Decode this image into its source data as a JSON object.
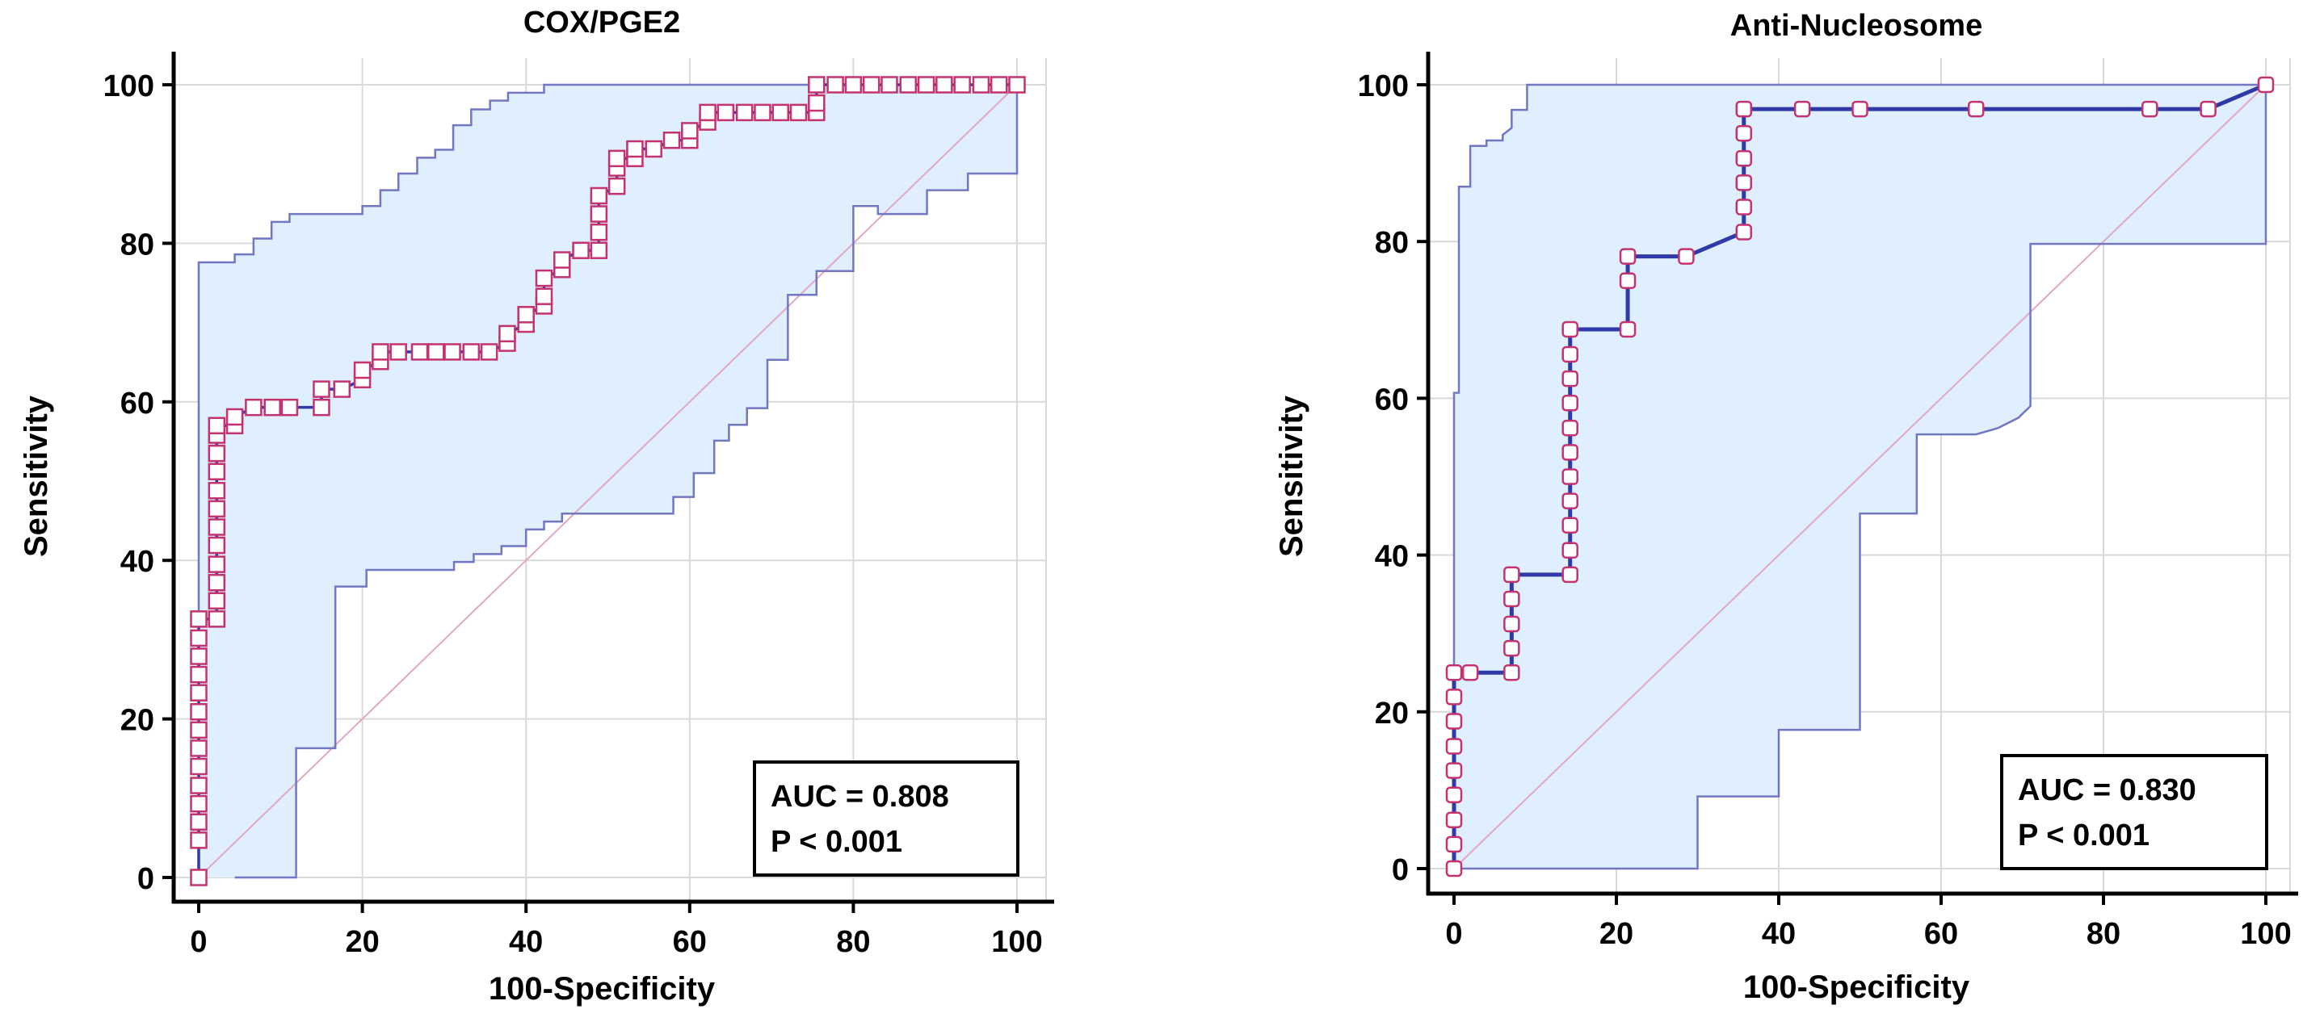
{
  "colors": {
    "ci_fill": "#dfeffd",
    "ci_line": "#7377c2",
    "curve": "#2f3aa8",
    "marker": "#c4326f",
    "diagonal": "#e2a7c4",
    "grid": "#d9d9d9",
    "axis": "#000000"
  },
  "chart_data": [
    {
      "type": "line",
      "title": "COX/PGE2",
      "xlabel": "100-Specificity",
      "ylabel": "Sensitivity",
      "xlim": [
        0,
        100
      ],
      "ylim": [
        0,
        100
      ],
      "xticks": [
        "0",
        "20",
        "40",
        "60",
        "80",
        "100"
      ],
      "yticks": [
        "0",
        "20",
        "40",
        "60",
        "80",
        "100"
      ],
      "grid": true,
      "marker": "square",
      "annotation": {
        "auc": "AUC = 0.808",
        "p": "P < 0.001",
        "position": "bottom-right"
      },
      "series": [
        {
          "name": "ROC",
          "points": [
            [
              0,
              0
            ],
            [
              0,
              4.7
            ],
            [
              0,
              7
            ],
            [
              0,
              9.3
            ],
            [
              0,
              11.6
            ],
            [
              0,
              14
            ],
            [
              0,
              16.3
            ],
            [
              0,
              18.6
            ],
            [
              0,
              20.9
            ],
            [
              0,
              23.3
            ],
            [
              0,
              25.6
            ],
            [
              0,
              27.9
            ],
            [
              0,
              30.2
            ],
            [
              0,
              32.6
            ],
            [
              2.2,
              32.6
            ],
            [
              2.2,
              34.9
            ],
            [
              2.2,
              37.2
            ],
            [
              2.2,
              39.5
            ],
            [
              2.2,
              41.9
            ],
            [
              2.2,
              44.2
            ],
            [
              2.2,
              46.5
            ],
            [
              2.2,
              48.8
            ],
            [
              2.2,
              51.2
            ],
            [
              2.2,
              53.5
            ],
            [
              2.2,
              55.8
            ],
            [
              2.2,
              57
            ],
            [
              4.4,
              57
            ],
            [
              4.4,
              58.1
            ],
            [
              6.7,
              59.3
            ],
            [
              9,
              59.3
            ],
            [
              11.1,
              59.3
            ],
            [
              15,
              59.3
            ],
            [
              15,
              61.6
            ],
            [
              17.5,
              61.6
            ],
            [
              20,
              62.8
            ],
            [
              20,
              64
            ],
            [
              22.2,
              65.1
            ],
            [
              22.2,
              66.3
            ],
            [
              24.4,
              66.3
            ],
            [
              27,
              66.3
            ],
            [
              29,
              66.3
            ],
            [
              31,
              66.3
            ],
            [
              33.3,
              66.3
            ],
            [
              35.5,
              66.3
            ],
            [
              37.7,
              67.4
            ],
            [
              37.7,
              68.6
            ],
            [
              40,
              69.8
            ],
            [
              40,
              71
            ],
            [
              42.2,
              72.1
            ],
            [
              42.2,
              73.3
            ],
            [
              42.2,
              75.6
            ],
            [
              44.4,
              76.7
            ],
            [
              44.4,
              77.9
            ],
            [
              46.7,
              79.1
            ],
            [
              48.9,
              79.1
            ],
            [
              48.9,
              81.4
            ],
            [
              48.9,
              83.7
            ],
            [
              48.9,
              86
            ],
            [
              51.1,
              87.2
            ],
            [
              51.1,
              89.5
            ],
            [
              51.1,
              90.7
            ],
            [
              53.3,
              90.7
            ],
            [
              53.3,
              91.9
            ],
            [
              55.6,
              91.9
            ],
            [
              57.8,
              93
            ],
            [
              60,
              93
            ],
            [
              60,
              94.2
            ],
            [
              62.2,
              95.3
            ],
            [
              62.2,
              96.5
            ],
            [
              64.4,
              96.5
            ],
            [
              66.7,
              96.5
            ],
            [
              68.9,
              96.5
            ],
            [
              71.1,
              96.5
            ],
            [
              73.3,
              96.5
            ],
            [
              75.5,
              96.5
            ],
            [
              75.5,
              97.7
            ],
            [
              75.5,
              100
            ],
            [
              77.8,
              100
            ],
            [
              80,
              100
            ],
            [
              82.2,
              100
            ],
            [
              84.4,
              100
            ],
            [
              86.7,
              100
            ],
            [
              88.9,
              100
            ],
            [
              91.1,
              100
            ],
            [
              93.3,
              100
            ],
            [
              95.6,
              100
            ],
            [
              97.8,
              100
            ],
            [
              100,
              100
            ]
          ]
        },
        {
          "name": "CI upper",
          "points": [
            [
              0,
              0
            ],
            [
              0,
              77.6
            ],
            [
              4.4,
              77.6
            ],
            [
              4.4,
              78.6
            ],
            [
              6.7,
              78.6
            ],
            [
              6.7,
              80.6
            ],
            [
              8.9,
              80.6
            ],
            [
              8.9,
              82.7
            ],
            [
              11.1,
              82.7
            ],
            [
              11.1,
              83.7
            ],
            [
              20,
              83.7
            ],
            [
              20,
              84.7
            ],
            [
              22.2,
              84.7
            ],
            [
              22.2,
              86.7
            ],
            [
              24.4,
              86.7
            ],
            [
              24.4,
              88.8
            ],
            [
              26.7,
              88.8
            ],
            [
              26.7,
              90.8
            ],
            [
              28.9,
              90.8
            ],
            [
              28.9,
              91.8
            ],
            [
              31.1,
              91.8
            ],
            [
              31.1,
              94.9
            ],
            [
              33.3,
              94.9
            ],
            [
              33.3,
              96.9
            ],
            [
              35.6,
              96.9
            ],
            [
              35.6,
              98
            ],
            [
              37.8,
              98
            ],
            [
              37.8,
              99
            ],
            [
              42.2,
              99
            ],
            [
              42.2,
              100
            ],
            [
              100,
              100
            ]
          ]
        },
        {
          "name": "CI lower",
          "points": [
            [
              4.4,
              0
            ],
            [
              11.9,
              0
            ],
            [
              11.9,
              16.3
            ],
            [
              16.7,
              16.3
            ],
            [
              16.7,
              36.7
            ],
            [
              20.5,
              36.7
            ],
            [
              20.5,
              38.8
            ],
            [
              31.2,
              38.8
            ],
            [
              31.2,
              39.8
            ],
            [
              33.6,
              39.8
            ],
            [
              33.6,
              40.8
            ],
            [
              37,
              40.8
            ],
            [
              37,
              41.8
            ],
            [
              40,
              41.8
            ],
            [
              40,
              43.9
            ],
            [
              42.2,
              43.9
            ],
            [
              42.2,
              44.9
            ],
            [
              44.4,
              44.9
            ],
            [
              44.4,
              45.9
            ],
            [
              58,
              45.9
            ],
            [
              58,
              48
            ],
            [
              60.5,
              48
            ],
            [
              60.5,
              49
            ],
            [
              60.5,
              51
            ],
            [
              63,
              51
            ],
            [
              63,
              53.1
            ],
            [
              63,
              55.1
            ],
            [
              64.8,
              55.1
            ],
            [
              64.8,
              57.1
            ],
            [
              67,
              57.1
            ],
            [
              67,
              59.2
            ],
            [
              69.5,
              59.2
            ],
            [
              69.5,
              65.3
            ],
            [
              72,
              65.3
            ],
            [
              72,
              69.4
            ],
            [
              72,
              73.5
            ],
            [
              75.5,
              73.5
            ],
            [
              75.5,
              76.5
            ],
            [
              78,
              76.5
            ],
            [
              80,
              76.5
            ],
            [
              80,
              84.7
            ],
            [
              83,
              84.7
            ],
            [
              83,
              83.7
            ],
            [
              89,
              83.7
            ],
            [
              89,
              86.7
            ],
            [
              94,
              86.7
            ],
            [
              94,
              88.8
            ],
            [
              100,
              88.8
            ],
            [
              100,
              100
            ]
          ]
        },
        {
          "name": "Reference",
          "points": [
            [
              0,
              0
            ],
            [
              100,
              100
            ]
          ]
        }
      ]
    },
    {
      "type": "line",
      "title": "Anti-Nucleosome",
      "xlabel": "100-Specificity",
      "ylabel": "Sensitivity",
      "xlim": [
        0,
        100
      ],
      "ylim": [
        0,
        100
      ],
      "xticks": [
        "0",
        "20",
        "40",
        "60",
        "80",
        "100"
      ],
      "yticks": [
        "0",
        "20",
        "40",
        "60",
        "80",
        "100"
      ],
      "grid": true,
      "marker": "rounded-square",
      "annotation": {
        "auc": "AUC = 0.830",
        "p": "P < 0.001",
        "position": "bottom-right"
      },
      "series": [
        {
          "name": "ROC",
          "points": [
            [
              0,
              0
            ],
            [
              0,
              3.1
            ],
            [
              0,
              6.2
            ],
            [
              0,
              9.4
            ],
            [
              0,
              12.5
            ],
            [
              0,
              15.6
            ],
            [
              0,
              18.8
            ],
            [
              0,
              21.9
            ],
            [
              0,
              25
            ],
            [
              2,
              25
            ],
            [
              7.1,
              25
            ],
            [
              7.1,
              28.1
            ],
            [
              7.1,
              31.2
            ],
            [
              7.1,
              34.4
            ],
            [
              7.1,
              37.5
            ],
            [
              14.3,
              37.5
            ],
            [
              14.3,
              40.6
            ],
            [
              14.3,
              43.8
            ],
            [
              14.3,
              46.9
            ],
            [
              14.3,
              50
            ],
            [
              14.3,
              53.1
            ],
            [
              14.3,
              56.2
            ],
            [
              14.3,
              59.4
            ],
            [
              14.3,
              62.5
            ],
            [
              14.3,
              65.6
            ],
            [
              14.3,
              68.8
            ],
            [
              21.4,
              68.8
            ],
            [
              21.4,
              75
            ],
            [
              21.4,
              78.1
            ],
            [
              28.6,
              78.1
            ],
            [
              35.7,
              81.2
            ],
            [
              35.7,
              84.4
            ],
            [
              35.7,
              87.5
            ],
            [
              35.7,
              90.6
            ],
            [
              35.7,
              93.8
            ],
            [
              35.7,
              96.9
            ],
            [
              42.9,
              96.9
            ],
            [
              50,
              96.9
            ],
            [
              64.3,
              96.9
            ],
            [
              85.7,
              96.9
            ],
            [
              92.9,
              96.9
            ],
            [
              100,
              100
            ]
          ]
        },
        {
          "name": "CI upper",
          "points": [
            [
              0,
              0
            ],
            [
              0,
              60.7
            ],
            [
              0.6,
              60.7
            ],
            [
              0.6,
              87
            ],
            [
              2,
              87
            ],
            [
              2,
              92.2
            ],
            [
              4,
              92.2
            ],
            [
              4,
              92.9
            ],
            [
              6,
              92.9
            ],
            [
              6,
              93.6
            ],
            [
              7.1,
              94.5
            ],
            [
              7.1,
              96.8
            ],
            [
              9,
              96.8
            ],
            [
              9,
              100
            ],
            [
              100,
              100
            ]
          ]
        },
        {
          "name": "CI lower",
          "points": [
            [
              0,
              0
            ],
            [
              30,
              0
            ],
            [
              30,
              9.2
            ],
            [
              40,
              9.2
            ],
            [
              40,
              17.7
            ],
            [
              50,
              17.7
            ],
            [
              50,
              45.3
            ],
            [
              57,
              45.3
            ],
            [
              57,
              55.4
            ],
            [
              64.3,
              55.4
            ],
            [
              67,
              56.2
            ],
            [
              69.5,
              57.5
            ],
            [
              71,
              59
            ],
            [
              71,
              79.7
            ],
            [
              80,
              79.7
            ],
            [
              100,
              79.7
            ],
            [
              100,
              100
            ]
          ]
        },
        {
          "name": "Reference",
          "points": [
            [
              0,
              0
            ],
            [
              100,
              100
            ]
          ]
        }
      ]
    }
  ]
}
